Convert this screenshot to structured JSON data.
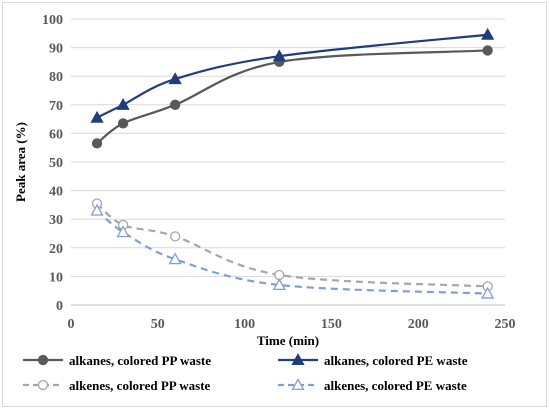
{
  "chart_data": {
    "type": "line",
    "xlabel": "Time (min)",
    "ylabel": "Peak area (%)",
    "xlim": [
      0,
      250
    ],
    "ylim": [
      0,
      100
    ],
    "xticks": [
      0,
      50,
      100,
      150,
      200,
      250
    ],
    "yticks": [
      0,
      10,
      20,
      30,
      40,
      50,
      60,
      70,
      80,
      90,
      100
    ],
    "grid": true,
    "legend_position": "bottom",
    "series": [
      {
        "name": "alkanes, colored PP waste",
        "x": [
          15,
          30,
          60,
          120,
          240
        ],
        "values": [
          56.5,
          63.5,
          70,
          85,
          89
        ],
        "color": "#595959",
        "marker": "circle-filled",
        "line": "solid"
      },
      {
        "name": "alkanes, colored PE waste",
        "x": [
          15,
          30,
          60,
          120,
          240
        ],
        "values": [
          65.5,
          70,
          79,
          87,
          94.5
        ],
        "color": "#1f3e7a",
        "marker": "triangle-filled",
        "line": "solid"
      },
      {
        "name": "alkenes, colored PP waste",
        "x": [
          15,
          30,
          60,
          120,
          240
        ],
        "values": [
          35.5,
          28,
          24,
          10.5,
          6.5
        ],
        "color": "#a6a6a6",
        "marker": "circle-open",
        "line": "dashed"
      },
      {
        "name": "alkenes, colored PE waste",
        "x": [
          15,
          30,
          60,
          120,
          240
        ],
        "values": [
          33,
          25.5,
          16,
          7,
          4
        ],
        "color": "#7f9fd4",
        "marker": "triangle-open",
        "line": "dashed"
      }
    ]
  }
}
